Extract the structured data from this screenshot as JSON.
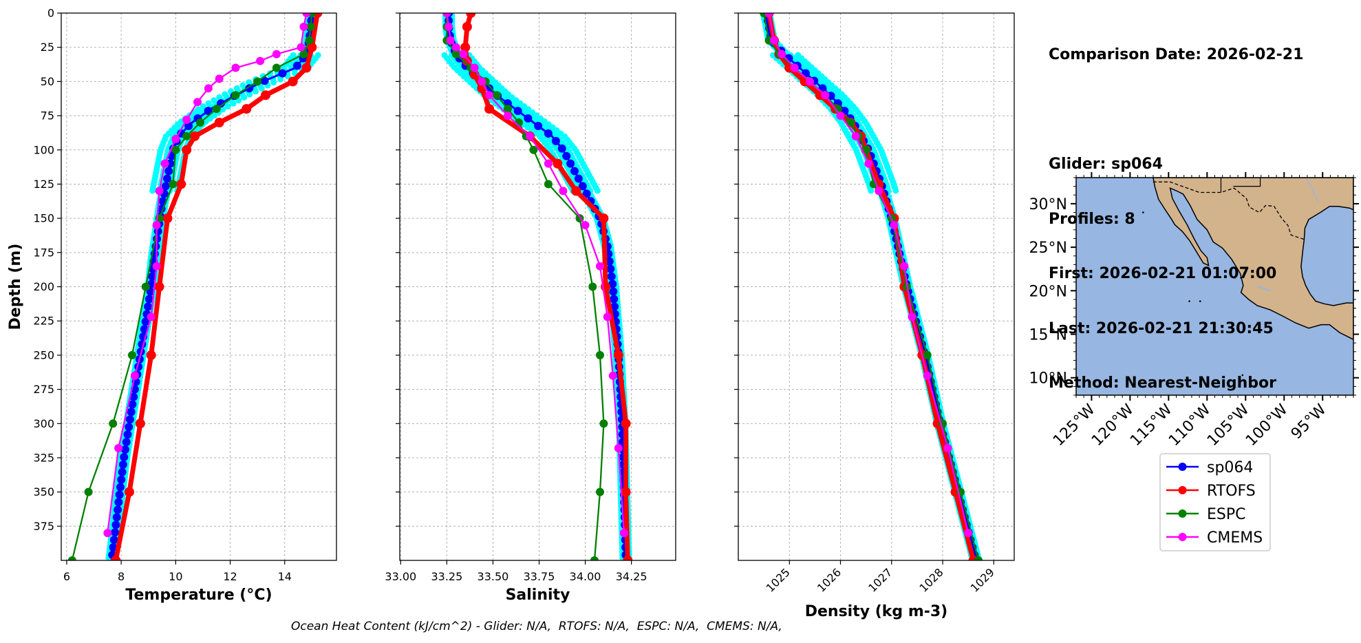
{
  "info": {
    "comparison_date": "Comparison Date: 2026-02-21",
    "glider": "Glider: sp064",
    "profiles": "Profiles: 8",
    "first": "First: 2026-02-21 01:07:00",
    "last": "Last: 2026-02-21 21:30:45",
    "method": "Method: Nearest-Neighbor"
  },
  "footer": "Ocean Heat Content (kJ/cm^2) - Glider: N/A,  RTOFS: N/A,  ESPC: N/A,  CMEMS: N/A,",
  "colors": {
    "glider": "#0000ff",
    "glider_raw": "#00ffff",
    "rtofs": "#ff0000",
    "espc": "#008000",
    "cmems": "#ff00ff",
    "ocean": "#97b6e1",
    "land": "#d2b38c"
  },
  "legend": {
    "placement": "below map",
    "entries": [
      {
        "key": "glider",
        "label": "sp064"
      },
      {
        "key": "rtofs",
        "label": "RTOFS"
      },
      {
        "key": "espc",
        "label": "ESPC"
      },
      {
        "key": "cmems",
        "label": "CMEMS"
      }
    ]
  },
  "map": {
    "lon_range": [
      -127,
      -91
    ],
    "lat_range": [
      8,
      33
    ],
    "lat_ticks": [
      "30°N",
      "25°N",
      "20°N",
      "15°N",
      "10°N"
    ],
    "lat_values": [
      30,
      25,
      20,
      15,
      10
    ],
    "lon_ticks": [
      "125°W",
      "120°W",
      "115°W",
      "110°W",
      "105°W",
      "100°W",
      "95°W"
    ],
    "lon_values": [
      -125,
      -120,
      -115,
      -110,
      -105,
      -100,
      -95
    ]
  },
  "chart_data": [
    {
      "type": "line",
      "xlabel": "Temperature (°C)",
      "ylabel": "Depth (m)",
      "xlim": [
        5.8,
        15.9
      ],
      "ylim": [
        400,
        0
      ],
      "y_inverted": true,
      "grid": true,
      "xticks": [
        6,
        8,
        10,
        12,
        14
      ],
      "yticks": [
        0,
        25,
        50,
        75,
        100,
        125,
        150,
        175,
        200,
        225,
        250,
        275,
        300,
        325,
        350,
        375
      ],
      "series": [
        {
          "key": "glider",
          "depth": [
            0,
            10,
            20,
            30,
            40,
            50,
            60,
            70,
            80,
            90,
            100,
            120,
            140,
            160,
            180,
            200,
            225,
            250,
            275,
            300,
            325,
            350,
            375,
            400
          ],
          "values": [
            15.0,
            14.95,
            14.9,
            14.8,
            14.4,
            13.2,
            12.2,
            11.3,
            10.6,
            10.1,
            9.9,
            9.7,
            9.5,
            9.35,
            9.2,
            9.1,
            8.9,
            8.7,
            8.5,
            8.3,
            8.1,
            7.95,
            7.8,
            7.65
          ]
        },
        {
          "key": "rtofs",
          "depth": [
            0,
            25,
            40,
            50,
            60,
            70,
            80,
            90,
            100,
            125,
            150,
            200,
            250,
            300,
            350,
            400
          ],
          "values": [
            15.2,
            15.0,
            14.8,
            14.3,
            13.3,
            12.6,
            11.6,
            10.7,
            10.4,
            10.2,
            9.7,
            9.4,
            9.1,
            8.7,
            8.3,
            7.8
          ]
        },
        {
          "key": "espc",
          "depth": [
            0,
            10,
            20,
            30,
            40,
            50,
            60,
            70,
            80,
            90,
            100,
            125,
            150,
            200,
            250,
            300,
            350,
            400
          ],
          "values": [
            15.0,
            14.95,
            14.9,
            14.7,
            13.7,
            13.0,
            12.2,
            11.5,
            10.9,
            10.4,
            10.0,
            9.9,
            9.4,
            8.9,
            8.4,
            7.7,
            6.8,
            6.2
          ]
        },
        {
          "key": "cmems",
          "depth": [
            0,
            10,
            25,
            30,
            35,
            40,
            48,
            55,
            65,
            78,
            92,
            110,
            130,
            155,
            185,
            222,
            265,
            318,
            380
          ],
          "values": [
            14.8,
            14.7,
            14.6,
            13.7,
            13.1,
            12.2,
            11.6,
            11.2,
            10.8,
            10.4,
            10.0,
            9.6,
            9.4,
            9.3,
            9.3,
            9.1,
            8.5,
            7.9,
            7.5
          ]
        }
      ]
    },
    {
      "type": "line",
      "xlabel": "Salinity",
      "ylabel": "",
      "xlim": [
        32.995,
        34.49
      ],
      "ylim": [
        400,
        0
      ],
      "y_inverted": true,
      "grid": true,
      "xticks": [
        33.0,
        33.25,
        33.5,
        33.75,
        34.0,
        34.25
      ],
      "xtick_labels": [
        "33.00",
        "33.25",
        "33.50",
        "33.75",
        "34.00",
        "34.25"
      ],
      "series": [
        {
          "key": "glider",
          "depth": [
            0,
            10,
            20,
            30,
            40,
            50,
            60,
            70,
            80,
            90,
            100,
            110,
            120,
            130,
            140,
            150,
            170,
            200,
            250,
            300,
            350,
            400
          ],
          "values": [
            33.26,
            33.26,
            33.27,
            33.3,
            33.36,
            33.44,
            33.52,
            33.62,
            33.72,
            33.82,
            33.88,
            33.92,
            33.96,
            34.0,
            34.04,
            34.08,
            34.12,
            34.15,
            34.18,
            34.2,
            34.21,
            34.22
          ]
        },
        {
          "key": "rtofs",
          "depth": [
            0,
            10,
            25,
            35,
            45,
            55,
            70,
            90,
            110,
            130,
            150,
            200,
            250,
            300,
            350,
            400
          ],
          "values": [
            33.38,
            33.36,
            33.35,
            33.36,
            33.4,
            33.44,
            33.48,
            33.7,
            33.85,
            33.95,
            34.1,
            34.11,
            34.18,
            34.22,
            34.22,
            34.23
          ]
        },
        {
          "key": "espc",
          "depth": [
            0,
            10,
            20,
            30,
            40,
            50,
            60,
            70,
            80,
            90,
            100,
            125,
            150,
            200,
            250,
            300,
            350,
            400
          ],
          "values": [
            33.25,
            33.25,
            33.25,
            33.3,
            33.38,
            33.46,
            33.52,
            33.58,
            33.64,
            33.68,
            33.72,
            33.8,
            33.97,
            34.04,
            34.08,
            34.1,
            34.08,
            34.05
          ]
        },
        {
          "key": "cmems",
          "depth": [
            0,
            10,
            20,
            25,
            30,
            40,
            50,
            60,
            75,
            90,
            110,
            130,
            155,
            185,
            222,
            265,
            318,
            380
          ],
          "values": [
            33.25,
            33.26,
            33.27,
            33.3,
            33.34,
            33.4,
            33.44,
            33.48,
            33.58,
            33.7,
            33.8,
            33.88,
            34.0,
            34.08,
            34.12,
            34.15,
            34.18,
            34.21
          ]
        }
      ]
    },
    {
      "type": "line",
      "xlabel": "Density (kg m-3)",
      "ylabel": "",
      "xlim": [
        1024.0,
        1029.4
      ],
      "ylim": [
        400,
        0
      ],
      "y_inverted": true,
      "grid": true,
      "xticks": [
        1025,
        1026,
        1027,
        1028,
        1029
      ],
      "series": [
        {
          "key": "glider",
          "depth": [
            0,
            20,
            30,
            40,
            50,
            60,
            70,
            80,
            90,
            100,
            125,
            150,
            200,
            250,
            300,
            350,
            400
          ],
          "values": [
            1024.55,
            1024.65,
            1024.9,
            1025.2,
            1025.5,
            1025.8,
            1026.05,
            1026.25,
            1026.4,
            1026.55,
            1026.8,
            1027.0,
            1027.3,
            1027.65,
            1027.95,
            1028.3,
            1028.65
          ]
        },
        {
          "key": "rtofs",
          "depth": [
            0,
            20,
            30,
            40,
            50,
            60,
            70,
            80,
            90,
            100,
            125,
            150,
            200,
            250,
            300,
            350,
            400
          ],
          "values": [
            1024.6,
            1024.7,
            1024.8,
            1025.0,
            1025.3,
            1025.6,
            1025.9,
            1026.2,
            1026.4,
            1026.5,
            1026.75,
            1027.05,
            1027.25,
            1027.6,
            1027.9,
            1028.25,
            1028.6
          ]
        },
        {
          "key": "espc",
          "depth": [
            0,
            20,
            30,
            40,
            50,
            60,
            70,
            80,
            90,
            100,
            125,
            150,
            200,
            250,
            300,
            350,
            400
          ],
          "values": [
            1024.5,
            1024.6,
            1024.8,
            1025.1,
            1025.4,
            1025.7,
            1025.95,
            1026.2,
            1026.35,
            1026.5,
            1026.65,
            1027.0,
            1027.3,
            1027.7,
            1028.0,
            1028.35,
            1028.7
          ]
        },
        {
          "key": "cmems",
          "depth": [
            0,
            20,
            30,
            40,
            50,
            60,
            75,
            90,
            110,
            130,
            155,
            185,
            222,
            265,
            318,
            380
          ],
          "values": [
            1024.6,
            1024.7,
            1024.85,
            1025.1,
            1025.4,
            1025.7,
            1026.0,
            1026.3,
            1026.55,
            1026.75,
            1027.05,
            1027.25,
            1027.4,
            1027.7,
            1028.1,
            1028.5
          ]
        }
      ]
    }
  ]
}
